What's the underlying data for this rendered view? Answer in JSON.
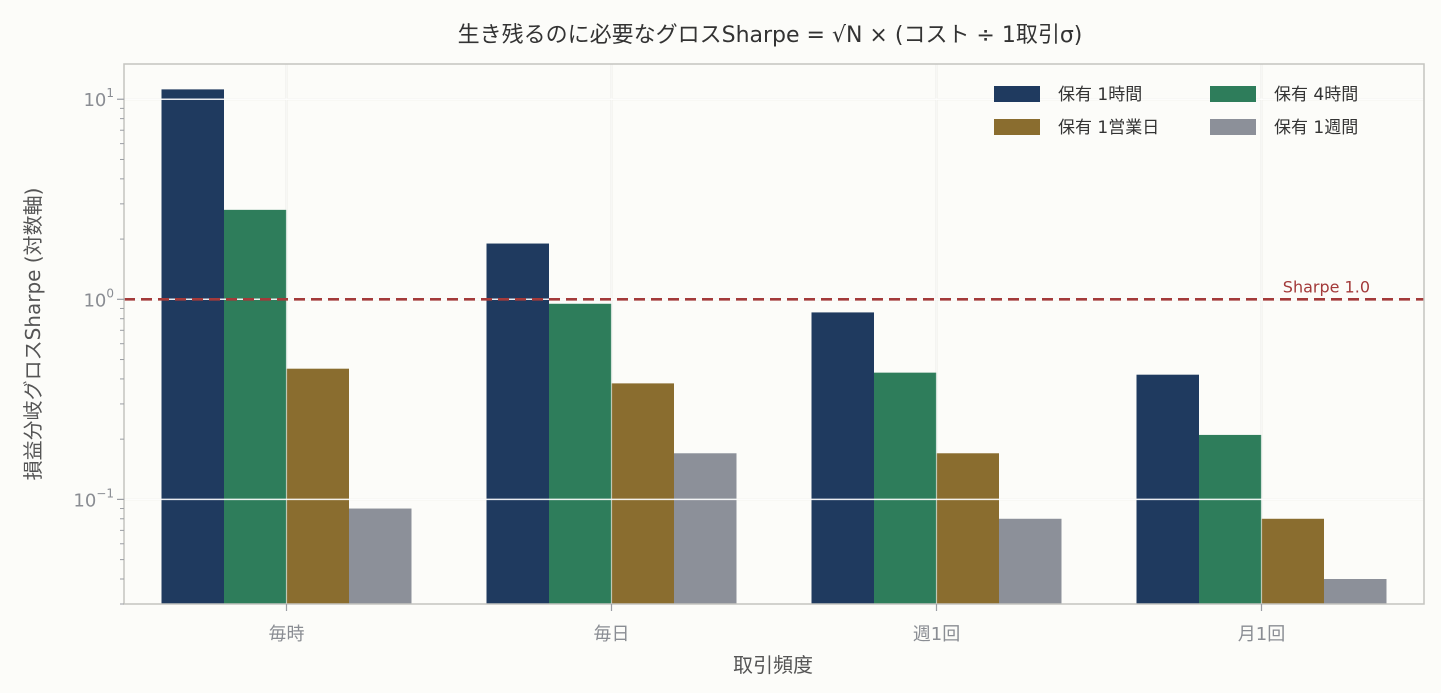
{
  "chart_data": {
    "type": "bar",
    "title": "生き残るのに必要なグロスSharpe = √N × (コスト ÷ 1取引σ)",
    "xlabel": "取引頻度",
    "ylabel": "損益分岐グロスSharpe (対数軸)",
    "yscale": "log",
    "ylim": [
      0.03,
      15
    ],
    "grid": true,
    "legend": "top-right",
    "categories": [
      "毎時",
      "毎日",
      "週1回",
      "月1回"
    ],
    "series": [
      {
        "name": "保有 1時間",
        "color": "#1f3a5f",
        "values": [
          11.2,
          1.9,
          0.86,
          0.42
        ]
      },
      {
        "name": "保有 4時間",
        "color": "#2e7d5b",
        "values": [
          2.8,
          0.95,
          0.43,
          0.21
        ]
      },
      {
        "name": "保有 1営業日",
        "color": "#8a6d2f",
        "values": [
          0.45,
          0.38,
          0.17,
          0.08
        ]
      },
      {
        "name": "保有 1週間",
        "color": "#8c9099",
        "values": [
          0.09,
          0.17,
          0.08,
          0.04
        ]
      }
    ],
    "yticks": [
      {
        "base": "10",
        "exp": "1",
        "value": 10
      },
      {
        "base": "10",
        "exp": "0",
        "value": 1
      },
      {
        "base": "10",
        "exp": "−1",
        "value": 0.1
      }
    ],
    "reference_line": {
      "value": 1.0,
      "label": "Sharpe 1.0",
      "color": "#a33a3a"
    }
  }
}
